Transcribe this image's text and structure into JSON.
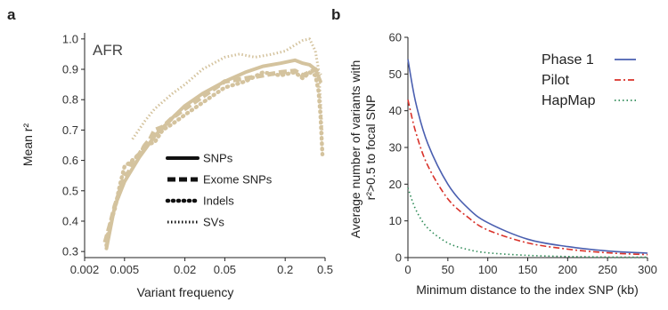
{
  "colors": {
    "tan": "#d4c39e",
    "phase1": "#4a5fb0",
    "pilot": "#d9322a",
    "hapmap": "#2e8b57",
    "axis": "#222222"
  },
  "chart_data": [
    {
      "panel": "a",
      "type": "line",
      "inset_label": "AFR",
      "xlabel": "Variant frequency",
      "ylabel": "Mean r²",
      "x_scale": "log",
      "xlim": [
        0.002,
        0.5
      ],
      "ylim": [
        0.28,
        1.02
      ],
      "x_ticks": [
        {
          "v": 0.002,
          "label": "0.002"
        },
        {
          "v": 0.005,
          "label": "0.005"
        },
        {
          "v": 0.02,
          "label": "0.02"
        },
        {
          "v": 0.05,
          "label": "0.05"
        },
        {
          "v": 0.2,
          "label": "0.2"
        },
        {
          "v": 0.5,
          "label": "0.5"
        }
      ],
      "y_ticks": [
        {
          "v": 0.3,
          "label": "0.3"
        },
        {
          "v": 0.4,
          "label": "0.4"
        },
        {
          "v": 0.5,
          "label": "0.5"
        },
        {
          "v": 0.6,
          "label": "0.6"
        },
        {
          "v": 0.7,
          "label": "0.7"
        },
        {
          "v": 0.8,
          "label": "0.8"
        },
        {
          "v": 0.9,
          "label": "0.9"
        },
        {
          "v": 1.0,
          "label": "1.0"
        }
      ],
      "legend_position": "center",
      "series": [
        {
          "name": "SNPs",
          "style": "solid",
          "x": [
            0.0033,
            0.004,
            0.005,
            0.007,
            0.01,
            0.015,
            0.02,
            0.03,
            0.05,
            0.08,
            0.12,
            0.18,
            0.25,
            0.3,
            0.35,
            0.4,
            0.45
          ],
          "y": [
            0.31,
            0.45,
            0.53,
            0.61,
            0.68,
            0.74,
            0.78,
            0.82,
            0.86,
            0.89,
            0.91,
            0.92,
            0.93,
            0.92,
            0.915,
            0.9,
            0.86
          ]
        },
        {
          "name": "Exome SNPs",
          "style": "dashed",
          "x": [
            0.0032,
            0.0036,
            0.004,
            0.0045,
            0.005,
            0.0055,
            0.006,
            0.007,
            0.008,
            0.009,
            0.01,
            0.012,
            0.015,
            0.02,
            0.03,
            0.05,
            0.08,
            0.12,
            0.18,
            0.25,
            0.3,
            0.35,
            0.4,
            0.45
          ],
          "y": [
            0.33,
            0.39,
            0.45,
            0.5,
            0.55,
            0.56,
            0.6,
            0.62,
            0.65,
            0.67,
            0.7,
            0.71,
            0.74,
            0.77,
            0.81,
            0.86,
            0.87,
            0.88,
            0.89,
            0.895,
            0.88,
            0.89,
            0.9,
            0.88
          ]
        },
        {
          "name": "Indels",
          "style": "dotted",
          "x": [
            0.0033,
            0.0035,
            0.004,
            0.0045,
            0.005,
            0.006,
            0.007,
            0.008,
            0.01,
            0.012,
            0.015,
            0.02,
            0.03,
            0.05,
            0.08,
            0.12,
            0.18,
            0.25,
            0.3,
            0.35,
            0.4,
            0.43,
            0.45,
            0.47
          ],
          "y": [
            0.32,
            0.38,
            0.44,
            0.52,
            0.58,
            0.6,
            0.62,
            0.65,
            0.66,
            0.7,
            0.72,
            0.75,
            0.79,
            0.84,
            0.86,
            0.89,
            0.88,
            0.89,
            0.87,
            0.89,
            0.88,
            0.83,
            0.75,
            0.62
          ]
        },
        {
          "name": "SVs",
          "style": "dense-dotted",
          "x": [
            0.006,
            0.008,
            0.01,
            0.015,
            0.02,
            0.03,
            0.05,
            0.07,
            0.1,
            0.15,
            0.2,
            0.25,
            0.3,
            0.35,
            0.4,
            0.43,
            0.45,
            0.47
          ],
          "y": [
            0.67,
            0.73,
            0.77,
            0.82,
            0.85,
            0.9,
            0.94,
            0.95,
            0.94,
            0.95,
            0.96,
            0.98,
            0.995,
            1.0,
            0.96,
            0.9,
            0.8,
            0.68
          ]
        }
      ]
    },
    {
      "panel": "b",
      "type": "line",
      "xlabel": "Minimum distance to the index SNP (kb)",
      "ylabel": "Average number of variants with r²>0.5 to focal SNP",
      "xlim": [
        0,
        300
      ],
      "ylim": [
        0,
        60
      ],
      "x_ticks": [
        0,
        50,
        100,
        150,
        200,
        250,
        300
      ],
      "y_ticks": [
        0,
        10,
        20,
        30,
        40,
        50,
        60
      ],
      "legend_position": "top-right",
      "series": [
        {
          "name": "Phase 1",
          "style": "solid",
          "x": [
            0,
            10,
            25,
            50,
            75,
            100,
            150,
            200,
            250,
            300
          ],
          "y": [
            54,
            42,
            31,
            20,
            13.5,
            9.5,
            5,
            3,
            1.8,
            1.2
          ]
        },
        {
          "name": "Pilot",
          "style": "dash-dot",
          "x": [
            0,
            10,
            25,
            50,
            75,
            100,
            150,
            200,
            250,
            300
          ],
          "y": [
            43,
            34,
            25,
            16,
            11,
            7.5,
            4,
            2.3,
            1.3,
            0.8
          ]
        },
        {
          "name": "HapMap",
          "style": "dotted",
          "x": [
            0,
            10,
            25,
            50,
            75,
            100,
            150,
            200,
            250,
            300
          ],
          "y": [
            19,
            13,
            8,
            4,
            2.2,
            1.3,
            0.6,
            0.3,
            0.15,
            0.1
          ]
        }
      ]
    }
  ]
}
